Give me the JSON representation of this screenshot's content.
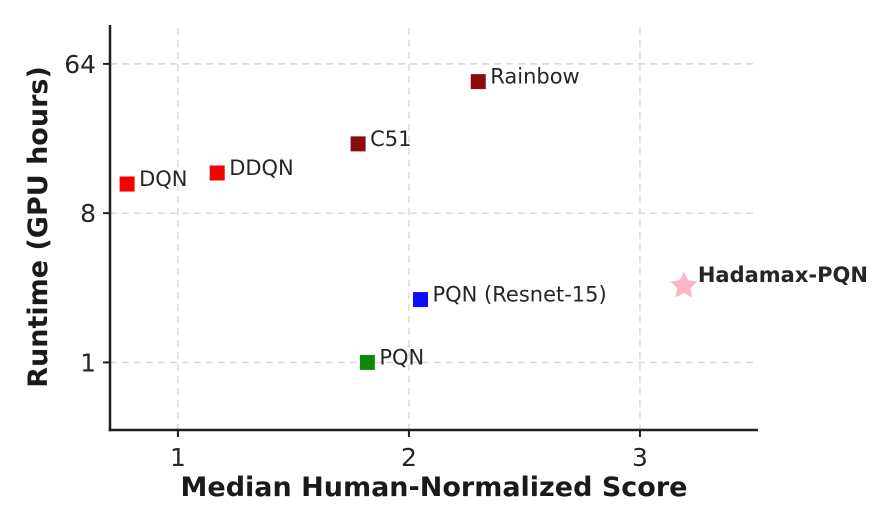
{
  "chart_data": {
    "type": "scatter",
    "title": "",
    "xlabel": "Median Human-Normalized Score",
    "ylabel": "Runtime (GPU hours)",
    "x_ticks": [
      1,
      2,
      3
    ],
    "y_ticks": [
      1,
      8,
      64
    ],
    "x_scale": "linear",
    "y_scale": "log",
    "xlim": [
      0.706,
      3.511
    ],
    "ylim": [
      0.39,
      110
    ],
    "grid": "dashed",
    "legend_position": "none (inline point labels)",
    "points": [
      {
        "label": "DQN",
        "x": 0.78,
        "y": 12,
        "color": "#f70000",
        "marker": "square",
        "bold": false
      },
      {
        "label": "DDQN",
        "x": 1.17,
        "y": 14,
        "color": "#f70000",
        "marker": "square",
        "bold": false
      },
      {
        "label": "C51",
        "x": 1.78,
        "y": 21,
        "color": "#8b0b0b",
        "marker": "square",
        "bold": false
      },
      {
        "label": "Rainbow",
        "x": 2.3,
        "y": 50,
        "color": "#8b0b0b",
        "marker": "square",
        "bold": false
      },
      {
        "label": "PQN",
        "x": 1.82,
        "y": 1.0,
        "color": "#0a8a0a",
        "marker": "square",
        "bold": false
      },
      {
        "label": "PQN (Resnet-15)",
        "x": 2.05,
        "y": 2.4,
        "color": "#0b0bff",
        "marker": "square",
        "bold": false
      },
      {
        "label": "Hadamax-PQN",
        "x": 3.19,
        "y": 2.9,
        "color": "#f9b6c5",
        "marker": "star",
        "bold": true
      }
    ],
    "colors": {
      "spine": "#1f1f1f",
      "grid": "#d8d8d8",
      "tick_label": "#262626",
      "annotation": "#1a1a1a",
      "background": "#ffffff"
    }
  }
}
